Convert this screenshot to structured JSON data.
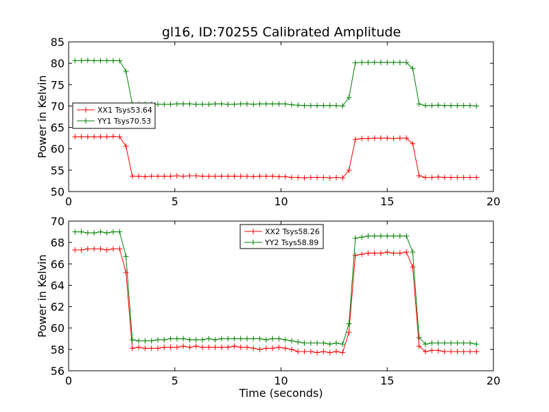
{
  "chart_data": [
    {
      "type": "line",
      "title": "gl16, ID:70255 Calibrated Amplitude",
      "xlabel": "",
      "ylabel": "Power in Kelvin",
      "xlim": [
        0,
        20
      ],
      "ylim": [
        50,
        85
      ],
      "xticks": [
        0,
        5,
        10,
        15,
        20
      ],
      "yticks": [
        50,
        55,
        60,
        65,
        70,
        75,
        80,
        85
      ],
      "grid": false,
      "legend_position": "center-left",
      "x": [
        0.3,
        0.6,
        0.9,
        1.2,
        1.5,
        1.8,
        2.1,
        2.4,
        2.7,
        3.0,
        3.3,
        3.6,
        3.9,
        4.2,
        4.5,
        4.8,
        5.1,
        5.4,
        5.7,
        6.0,
        6.3,
        6.6,
        6.9,
        7.2,
        7.5,
        7.8,
        8.1,
        8.4,
        8.7,
        9.0,
        9.3,
        9.6,
        9.9,
        10.2,
        10.5,
        10.8,
        11.1,
        11.4,
        11.7,
        12.0,
        12.3,
        12.6,
        12.9,
        13.2,
        13.5,
        13.8,
        14.1,
        14.4,
        14.7,
        15.0,
        15.3,
        15.6,
        15.9,
        16.2,
        16.5,
        16.8,
        17.1,
        17.4,
        17.7,
        18.0,
        18.3,
        18.6,
        18.9,
        19.2
      ],
      "series": [
        {
          "name": "XX1 Tsys53.64",
          "color": "#ff0000",
          "values": [
            62.8,
            62.8,
            62.8,
            62.8,
            62.8,
            62.8,
            62.9,
            62.8,
            60.6,
            53.6,
            53.6,
            53.5,
            53.6,
            53.6,
            53.6,
            53.6,
            53.7,
            53.6,
            53.7,
            53.7,
            53.6,
            53.6,
            53.6,
            53.6,
            53.6,
            53.6,
            53.6,
            53.6,
            53.5,
            53.6,
            53.6,
            53.6,
            53.5,
            53.5,
            53.3,
            53.3,
            53.2,
            53.3,
            53.3,
            53.3,
            53.2,
            53.3,
            53.2,
            55.0,
            62.2,
            62.4,
            62.4,
            62.5,
            62.5,
            62.5,
            62.4,
            62.5,
            62.5,
            61.2,
            53.7,
            53.3,
            53.3,
            53.4,
            53.3,
            53.3,
            53.3,
            53.3,
            53.3,
            53.3
          ]
        },
        {
          "name": "YY1 Tsys70.53",
          "color": "#008000",
          "values": [
            80.6,
            80.6,
            80.7,
            80.6,
            80.6,
            80.6,
            80.6,
            80.6,
            78.1,
            70.4,
            70.4,
            70.4,
            70.4,
            70.4,
            70.4,
            70.4,
            70.5,
            70.5,
            70.5,
            70.4,
            70.4,
            70.4,
            70.5,
            70.5,
            70.4,
            70.4,
            70.5,
            70.5,
            70.4,
            70.5,
            70.5,
            70.5,
            70.5,
            70.5,
            70.3,
            70.2,
            70.1,
            70.1,
            70.1,
            70.1,
            70.1,
            70.1,
            70.0,
            72.0,
            80.1,
            80.2,
            80.2,
            80.2,
            80.2,
            80.2,
            80.2,
            80.2,
            80.2,
            78.8,
            70.5,
            70.1,
            70.1,
            70.2,
            70.1,
            70.1,
            70.1,
            70.1,
            70.1,
            70.0
          ]
        }
      ]
    },
    {
      "type": "line",
      "title": "",
      "xlabel": "Time (seconds)",
      "ylabel": "Power in Kelvin",
      "xlim": [
        0,
        20
      ],
      "ylim": [
        56,
        70
      ],
      "xticks": [
        0,
        5,
        10,
        15,
        20
      ],
      "yticks": [
        56,
        58,
        60,
        62,
        64,
        66,
        68,
        70
      ],
      "grid": false,
      "legend_position": "top-center",
      "x": [
        0.3,
        0.6,
        0.9,
        1.2,
        1.5,
        1.8,
        2.1,
        2.4,
        2.7,
        3.0,
        3.3,
        3.6,
        3.9,
        4.2,
        4.5,
        4.8,
        5.1,
        5.4,
        5.7,
        6.0,
        6.3,
        6.6,
        6.9,
        7.2,
        7.5,
        7.8,
        8.1,
        8.4,
        8.7,
        9.0,
        9.3,
        9.6,
        9.9,
        10.2,
        10.5,
        10.8,
        11.1,
        11.4,
        11.7,
        12.0,
        12.3,
        12.6,
        12.9,
        13.2,
        13.5,
        13.8,
        14.1,
        14.4,
        14.7,
        15.0,
        15.3,
        15.6,
        15.9,
        16.2,
        16.5,
        16.8,
        17.1,
        17.4,
        17.7,
        18.0,
        18.3,
        18.6,
        18.9,
        19.2
      ],
      "series": [
        {
          "name": "XX2 Tsys58.26",
          "color": "#ff0000",
          "values": [
            67.3,
            67.3,
            67.4,
            67.4,
            67.4,
            67.3,
            67.4,
            67.4,
            65.2,
            58.1,
            58.2,
            58.1,
            58.1,
            58.1,
            58.2,
            58.2,
            58.2,
            58.3,
            58.2,
            58.3,
            58.2,
            58.2,
            58.2,
            58.2,
            58.2,
            58.3,
            58.2,
            58.2,
            58.1,
            58.0,
            58.1,
            58.1,
            58.2,
            58.1,
            58.0,
            57.8,
            57.8,
            57.8,
            57.7,
            57.8,
            57.7,
            57.8,
            57.7,
            59.6,
            66.8,
            66.9,
            67.0,
            67.0,
            67.0,
            67.1,
            67.0,
            67.0,
            67.1,
            65.7,
            58.3,
            57.8,
            57.9,
            57.9,
            57.8,
            57.8,
            57.8,
            57.8,
            57.8,
            57.8
          ]
        },
        {
          "name": "YY2 Tsys58.89",
          "color": "#008000",
          "values": [
            69.0,
            69.0,
            68.9,
            68.9,
            69.0,
            68.9,
            69.0,
            69.0,
            66.7,
            58.9,
            58.8,
            58.8,
            58.8,
            58.9,
            58.9,
            59.0,
            59.0,
            59.0,
            58.9,
            58.9,
            58.9,
            59.0,
            58.9,
            59.0,
            59.0,
            59.0,
            59.0,
            59.0,
            59.0,
            59.0,
            58.9,
            59.0,
            59.0,
            58.9,
            58.8,
            58.7,
            58.6,
            58.6,
            58.6,
            58.6,
            58.5,
            58.6,
            58.5,
            60.4,
            68.4,
            68.5,
            68.6,
            68.6,
            68.6,
            68.6,
            68.6,
            68.6,
            68.6,
            67.1,
            59.1,
            58.5,
            58.6,
            58.6,
            58.6,
            58.6,
            58.6,
            58.6,
            58.6,
            58.5
          ]
        }
      ]
    }
  ]
}
